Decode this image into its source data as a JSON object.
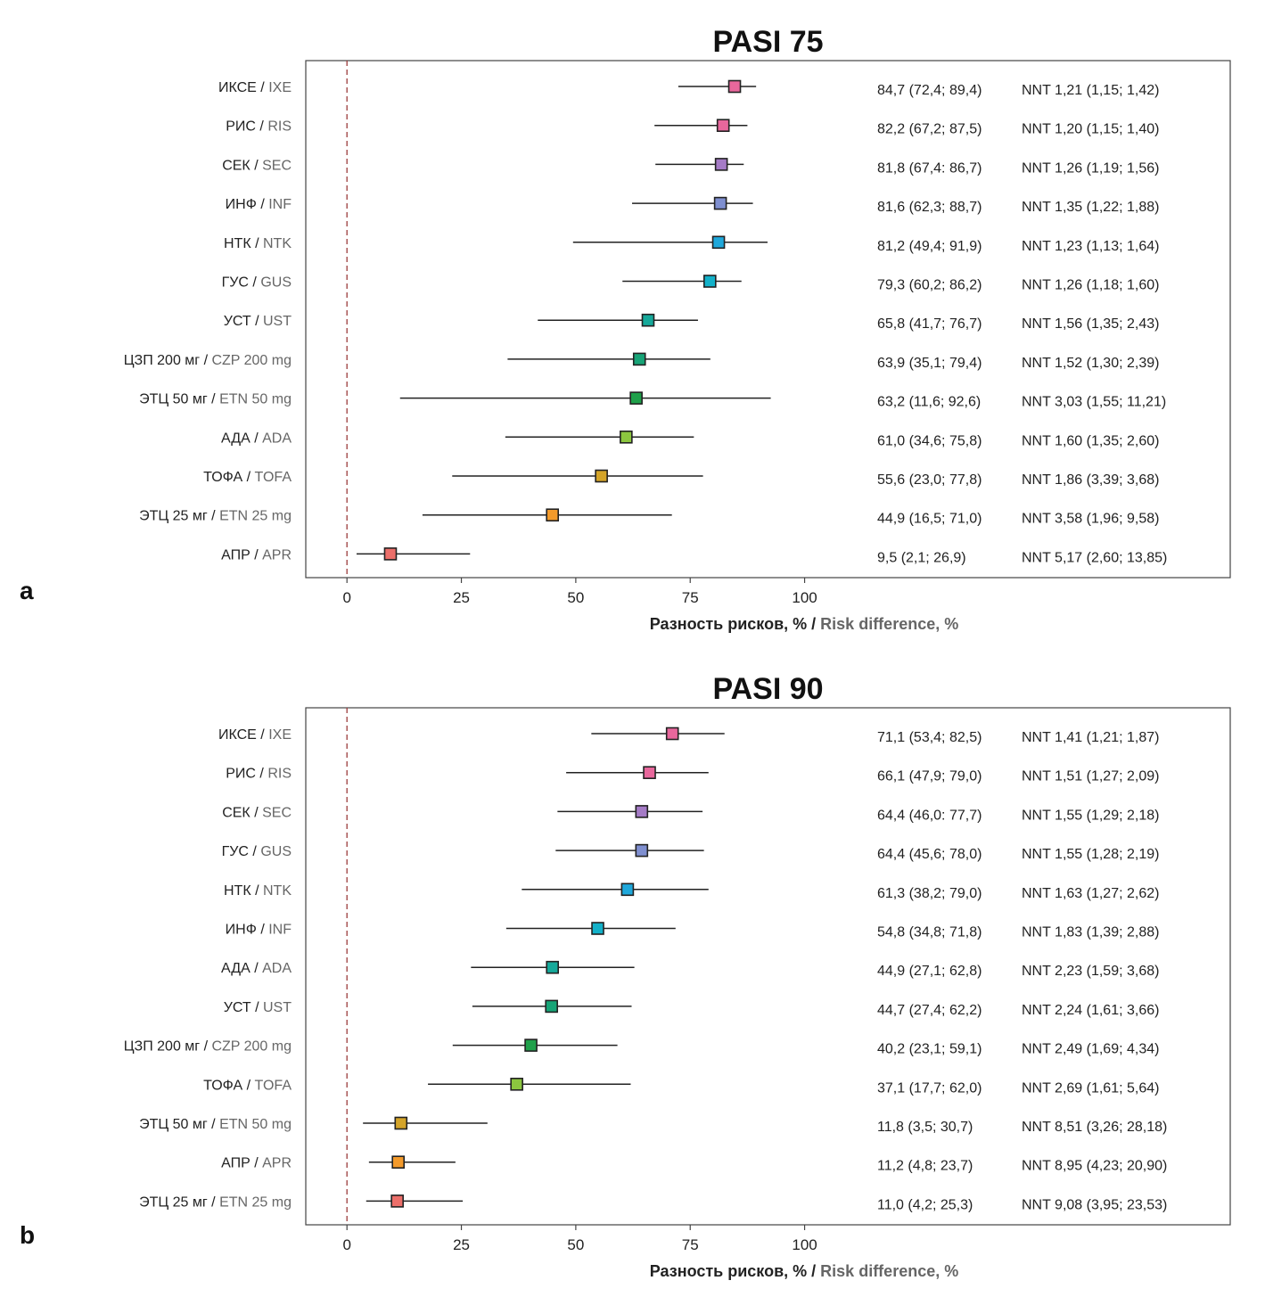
{
  "chart_data": [
    {
      "type": "forest",
      "panel_letter": "a",
      "title": "PASI 75",
      "xlabel_ru": "Разность рисков, %",
      "xlabel_sep": " / ",
      "xlabel_en": "Risk difference, %",
      "xlim": [
        -9,
        193
      ],
      "xticks": [
        0,
        25,
        50,
        75,
        100
      ],
      "reference_line": 0,
      "rows": [
        {
          "label_ru": "ИКСЕ",
          "label_en": "IXE",
          "value": 84.7,
          "lo": 72.4,
          "hi": 89.4,
          "color": "#e8679c",
          "effect": "84,7 (72,4; 89,4)",
          "nnt": "NNT 1,21 (1,15; 1,42)"
        },
        {
          "label_ru": "РИС",
          "label_en": "RIS",
          "value": 82.2,
          "lo": 67.2,
          "hi": 87.5,
          "color": "#e8679c",
          "effect": "82,2 (67,2; 87,5)",
          "nnt": "NNT 1,20 (1,15; 1,40)"
        },
        {
          "label_ru": "СЕК",
          "label_en": "SEC",
          "value": 81.8,
          "lo": 67.4,
          "hi": 86.7,
          "color": "#a57bc6",
          "effect": "81,8 (67,4: 86,7)",
          "nnt": "NNT 1,26 (1,19; 1,56)"
        },
        {
          "label_ru": "ИНФ",
          "label_en": "INF",
          "value": 81.6,
          "lo": 62.3,
          "hi": 88.7,
          "color": "#7f8fd0",
          "effect": "81,6 (62,3; 88,7)",
          "nnt": "NNT 1,35 (1,22; 1,88)"
        },
        {
          "label_ru": "НТК",
          "label_en": "NTK",
          "value": 81.2,
          "lo": 49.4,
          "hi": 91.9,
          "color": "#1fa8db",
          "effect": "81,2 (49,4; 91,9)",
          "nnt": "NNT 1,23 (1,13; 1,64)"
        },
        {
          "label_ru": "ГУС",
          "label_en": "GUS",
          "value": 79.3,
          "lo": 60.2,
          "hi": 86.2,
          "color": "#13b1c9",
          "effect": "79,3 (60,2; 86,2)",
          "nnt": "NNT 1,26 (1,18; 1,60)"
        },
        {
          "label_ru": "УСТ",
          "label_en": "UST",
          "value": 65.8,
          "lo": 41.7,
          "hi": 76.7,
          "color": "#16a99a",
          "effect": "65,8 (41,7; 76,7)",
          "nnt": "NNT 1,56 (1,35; 2,43)"
        },
        {
          "label_ru": "ЦЗП 200 мг",
          "label_en": "CZP 200 mg",
          "value": 63.9,
          "lo": 35.1,
          "hi": 79.4,
          "color": "#17a477",
          "effect": "63,9 (35,1; 79,4)",
          "nnt": "NNT 1,52 (1,30; 2,39)"
        },
        {
          "label_ru": "ЭТЦ 50 мг",
          "label_en": "ETN 50 mg",
          "value": 63.2,
          "lo": 11.6,
          "hi": 92.6,
          "color": "#1fa04a",
          "effect": "63,2 (11,6; 92,6)",
          "nnt": "NNT 3,03 (1,55; 11,21)"
        },
        {
          "label_ru": "АДА",
          "label_en": "ADA",
          "value": 61.0,
          "lo": 34.6,
          "hi": 75.8,
          "color": "#8cc63f",
          "effect": "61,0 (34,6; 75,8)",
          "nnt": "NNT 1,60 (1,35; 2,60)"
        },
        {
          "label_ru": "ТОФА",
          "label_en": "TOFA",
          "value": 55.6,
          "lo": 23.0,
          "hi": 77.8,
          "color": "#d4a429",
          "effect": "55,6 (23,0; 77,8)",
          "nnt": "NNT 1,86 (3,39; 3,68)"
        },
        {
          "label_ru": "ЭТЦ 25 мг",
          "label_en": "ETN 25 mg",
          "value": 44.9,
          "lo": 16.5,
          "hi": 71.0,
          "color": "#f39a2b",
          "effect": "44,9 (16,5; 71,0)",
          "nnt": "NNT 3,58 (1,96; 9,58)"
        },
        {
          "label_ru": "АПР",
          "label_en": "APR",
          "value": 9.5,
          "lo": 2.1,
          "hi": 26.9,
          "color": "#ec6f6a",
          "effect": "9,5 (2,1; 26,9)",
          "nnt": "NNT 5,17 (2,60; 13,85)"
        }
      ]
    },
    {
      "type": "forest",
      "panel_letter": "b",
      "title": "PASI 90",
      "xlabel_ru": "Разность рисков, %",
      "xlabel_sep": " / ",
      "xlabel_en": "Risk difference, %",
      "xlim": [
        -9,
        193
      ],
      "xticks": [
        0,
        25,
        50,
        75,
        100
      ],
      "reference_line": 0,
      "rows": [
        {
          "label_ru": "ИКСЕ",
          "label_en": "IXE",
          "value": 71.1,
          "lo": 53.4,
          "hi": 82.5,
          "color": "#e8679c",
          "effect": "71,1 (53,4; 82,5)",
          "nnt": "NNT 1,41 (1,21; 1,87)"
        },
        {
          "label_ru": "РИС",
          "label_en": "RIS",
          "value": 66.1,
          "lo": 47.9,
          "hi": 79.0,
          "color": "#e8679c",
          "effect": "66,1 (47,9; 79,0)",
          "nnt": "NNT 1,51 (1,27; 2,09)"
        },
        {
          "label_ru": "СЕК",
          "label_en": "SEC",
          "value": 64.4,
          "lo": 46.0,
          "hi": 77.7,
          "color": "#a57bc6",
          "effect": "64,4 (46,0: 77,7)",
          "nnt": "NNT 1,55 (1,29; 2,18)"
        },
        {
          "label_ru": "ГУС",
          "label_en": "GUS",
          "value": 64.4,
          "lo": 45.6,
          "hi": 78.0,
          "color": "#7f8fd0",
          "effect": "64,4 (45,6; 78,0)",
          "nnt": "NNT 1,55 (1,28; 2,19)"
        },
        {
          "label_ru": "НТК",
          "label_en": "NTK",
          "value": 61.3,
          "lo": 38.2,
          "hi": 79.0,
          "color": "#1fa8db",
          "effect": "61,3 (38,2; 79,0)",
          "nnt": "NNT 1,63 (1,27; 2,62)"
        },
        {
          "label_ru": "ИНФ",
          "label_en": "INF",
          "value": 54.8,
          "lo": 34.8,
          "hi": 71.8,
          "color": "#13b1c9",
          "effect": "54,8 (34,8; 71,8)",
          "nnt": "NNT 1,83 (1,39; 2,88)"
        },
        {
          "label_ru": "АДА",
          "label_en": "ADA",
          "value": 44.9,
          "lo": 27.1,
          "hi": 62.8,
          "color": "#16a99a",
          "effect": "44,9 (27,1; 62,8)",
          "nnt": "NNT 2,23 (1,59; 3,68)"
        },
        {
          "label_ru": "УСТ",
          "label_en": "UST",
          "value": 44.7,
          "lo": 27.4,
          "hi": 62.2,
          "color": "#17a477",
          "effect": "44,7 (27,4; 62,2)",
          "nnt": "NNT 2,24 (1,61; 3,66)"
        },
        {
          "label_ru": "ЦЗП 200 мг",
          "label_en": "CZP 200 mg",
          "value": 40.2,
          "lo": 23.1,
          "hi": 59.1,
          "color": "#1fa04a",
          "effect": "40,2 (23,1; 59,1)",
          "nnt": "NNT 2,49 (1,69; 4,34)"
        },
        {
          "label_ru": "ТОФА",
          "label_en": "TOFA",
          "value": 37.1,
          "lo": 17.7,
          "hi": 62.0,
          "color": "#8cc63f",
          "effect": "37,1 (17,7; 62,0)",
          "nnt": "NNT 2,69 (1,61; 5,64)"
        },
        {
          "label_ru": "ЭТЦ 50 мг",
          "label_en": "ETN 50 mg",
          "value": 11.8,
          "lo": 3.5,
          "hi": 30.7,
          "color": "#d4a429",
          "effect": "11,8 (3,5; 30,7)",
          "nnt": "NNT 8,51 (3,26; 28,18)"
        },
        {
          "label_ru": "АПР",
          "label_en": "APR",
          "value": 11.2,
          "lo": 4.8,
          "hi": 23.7,
          "color": "#f39a2b",
          "effect": "11,2 (4,8; 23,7)",
          "nnt": "NNT 8,95 (4,23; 20,90)"
        },
        {
          "label_ru": "ЭТЦ 25 мг",
          "label_en": "ETN 25 mg",
          "value": 11.0,
          "lo": 4.2,
          "hi": 25.3,
          "color": "#ec6f6a",
          "effect": "11,0 (4,2; 25,3)",
          "nnt": "NNT 9,08 (3,95; 23,53)"
        }
      ]
    }
  ],
  "colors": {
    "axis_frame": "#444444",
    "reference_line": "#9c3b3b",
    "whisker": "#222222",
    "label_ru": "#222222",
    "label_en": "#666666"
  }
}
